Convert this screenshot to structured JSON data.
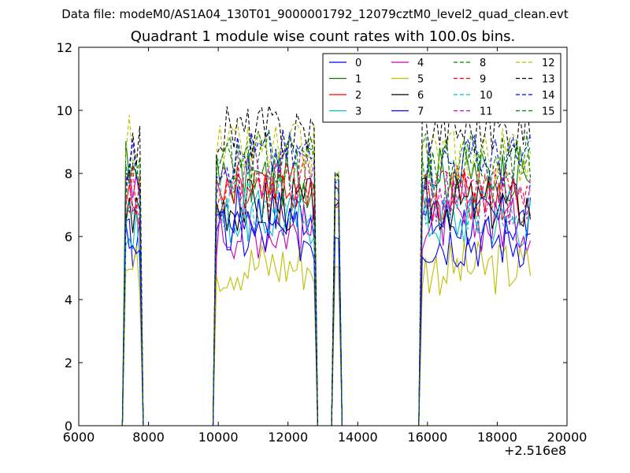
{
  "figure": {
    "suptitle": "Data file: modeM0/AS1A04_130T01_9000001792_12079cztM0_level2_quad_clean.evt"
  },
  "chart_data": {
    "type": "line",
    "title": "Quadrant 1 module wise count rates with 100.0s bins.",
    "xlabel": "",
    "ylabel": "",
    "x_offset_label": "+2.516e8",
    "xlim": [
      6000,
      20000
    ],
    "ylim": [
      0,
      12
    ],
    "x_ticks": [
      6000,
      8000,
      10000,
      12000,
      14000,
      16000,
      18000,
      20000
    ],
    "y_ticks": [
      0,
      2,
      4,
      6,
      8,
      10,
      12
    ],
    "legend_position": "top-right",
    "legend_columns": 4,
    "segments": [
      {
        "x_start": 7350,
        "x_end": 7750
      },
      {
        "x_start": 9950,
        "x_end": 12750
      },
      {
        "x_start": 13350,
        "x_end": 13450
      },
      {
        "x_start": 15850,
        "x_end": 18950
      }
    ],
    "series": [
      {
        "name": "0",
        "color": "#0000ff",
        "dash": "solid",
        "levels": [
          5.8,
          6.8,
          7.5,
          6.5
        ]
      },
      {
        "name": "1",
        "color": "#008000",
        "dash": "solid",
        "levels": [
          8.2,
          7.8,
          8.0,
          8.0
        ]
      },
      {
        "name": "2",
        "color": "#ff0000",
        "dash": "solid",
        "levels": [
          7.0,
          7.2,
          7.0,
          7.2
        ]
      },
      {
        "name": "3",
        "color": "#00bfbf",
        "dash": "solid",
        "levels": [
          6.0,
          6.6,
          7.8,
          6.5
        ]
      },
      {
        "name": "4",
        "color": "#bf00bf",
        "dash": "solid",
        "levels": [
          7.4,
          6.2,
          7.2,
          6.4
        ]
      },
      {
        "name": "5",
        "color": "#bfbf00",
        "dash": "solid",
        "levels": [
          5.0,
          5.1,
          5.0,
          5.0
        ]
      },
      {
        "name": "6",
        "color": "#000000",
        "dash": "solid",
        "levels": [
          6.8,
          7.0,
          7.0,
          7.0
        ]
      },
      {
        "name": "7",
        "color": "#0000ff",
        "dash": "solid",
        "levels": [
          6.0,
          6.0,
          6.0,
          5.9
        ]
      },
      {
        "name": "8",
        "color": "#008000",
        "dash": "dashed",
        "levels": [
          7.8,
          8.3,
          8.0,
          8.3
        ]
      },
      {
        "name": "9",
        "color": "#ff0000",
        "dash": "dashed",
        "levels": [
          7.5,
          7.6,
          7.5,
          7.7
        ]
      },
      {
        "name": "10",
        "color": "#00bfbf",
        "dash": "dashed",
        "levels": [
          6.4,
          7.0,
          7.5,
          7.0
        ]
      },
      {
        "name": "11",
        "color": "#bf00bf",
        "dash": "dashed",
        "levels": [
          7.0,
          8.0,
          7.5,
          7.2
        ]
      },
      {
        "name": "12",
        "color": "#bfbf00",
        "dash": "dashed",
        "levels": [
          9.2,
          8.7,
          8.0,
          8.6
        ]
      },
      {
        "name": "13",
        "color": "#000000",
        "dash": "dashed",
        "levels": [
          8.8,
          9.3,
          8.0,
          9.4
        ]
      },
      {
        "name": "14",
        "color": "#0000ff",
        "dash": "dashed",
        "levels": [
          8.3,
          8.6,
          7.8,
          8.4
        ]
      },
      {
        "name": "15",
        "color": "#008000",
        "dash": "dashed",
        "levels": [
          7.9,
          8.5,
          7.5,
          8.5
        ]
      }
    ]
  }
}
